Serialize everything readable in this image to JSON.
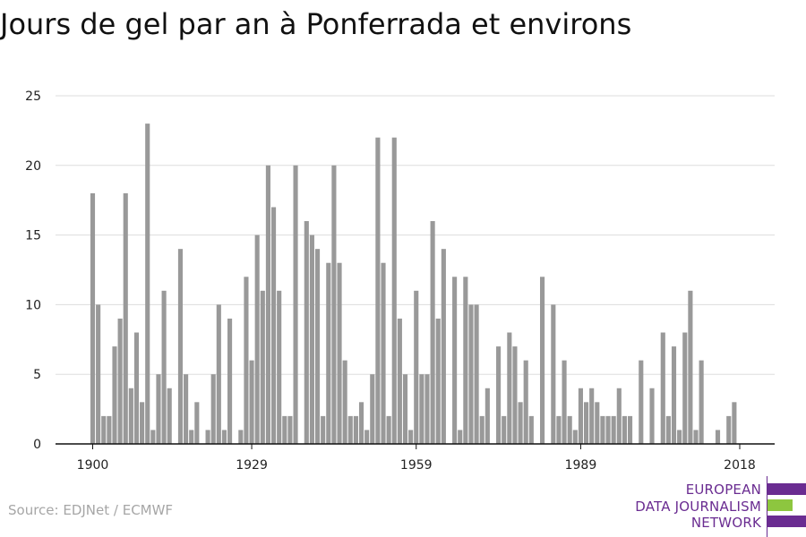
{
  "page": {
    "title": "Jours de gel par an à Ponferrada et environs",
    "source": "Source: EDJNet / ECMWF"
  },
  "logo": {
    "lines": [
      "EUROPEAN",
      "DATA JOURNALISM",
      "NETWORK"
    ],
    "colors": {
      "purple": "#6a2c91",
      "green": "#8dc63f"
    }
  },
  "chart_data": {
    "type": "bar",
    "title": "Jours de gel par an à Ponferrada et environs",
    "xlabel": "",
    "ylabel": "",
    "x_tick_labels": [
      "1900",
      "1929",
      "1959",
      "1989",
      "2018"
    ],
    "y_ticks": [
      0,
      5,
      10,
      15,
      20,
      25
    ],
    "ylim": [
      0,
      25
    ],
    "xlim": [
      1900,
      2018
    ],
    "grid": true,
    "bar_color": "#999999",
    "years": [
      1900,
      1901,
      1902,
      1903,
      1904,
      1905,
      1906,
      1907,
      1908,
      1909,
      1910,
      1911,
      1912,
      1913,
      1914,
      1915,
      1916,
      1917,
      1918,
      1919,
      1920,
      1921,
      1922,
      1923,
      1924,
      1925,
      1926,
      1927,
      1928,
      1929,
      1930,
      1931,
      1932,
      1933,
      1934,
      1935,
      1936,
      1937,
      1938,
      1939,
      1940,
      1941,
      1942,
      1943,
      1944,
      1945,
      1946,
      1947,
      1948,
      1949,
      1950,
      1951,
      1952,
      1953,
      1954,
      1955,
      1956,
      1957,
      1958,
      1959,
      1960,
      1961,
      1962,
      1963,
      1964,
      1965,
      1966,
      1967,
      1968,
      1969,
      1970,
      1971,
      1972,
      1973,
      1974,
      1975,
      1976,
      1977,
      1978,
      1979,
      1980,
      1981,
      1982,
      1983,
      1984,
      1985,
      1986,
      1987,
      1988,
      1989,
      1990,
      1991,
      1992,
      1993,
      1994,
      1995,
      1996,
      1997,
      1998,
      1999,
      2000,
      2001,
      2002,
      2003,
      2004,
      2005,
      2006,
      2007,
      2008,
      2009,
      2010,
      2011,
      2012,
      2013,
      2014,
      2015,
      2016,
      2017,
      2018
    ],
    "values": [
      18,
      10,
      2,
      2,
      7,
      9,
      18,
      4,
      8,
      3,
      23,
      1,
      5,
      11,
      4,
      0,
      14,
      5,
      1,
      3,
      0,
      1,
      5,
      10,
      1,
      9,
      0,
      1,
      12,
      6,
      15,
      11,
      20,
      17,
      11,
      2,
      2,
      20,
      0,
      16,
      15,
      14,
      2,
      13,
      20,
      13,
      6,
      2,
      2,
      3,
      1,
      5,
      22,
      13,
      2,
      22,
      9,
      5,
      1,
      11,
      5,
      5,
      16,
      9,
      14,
      0,
      12,
      1,
      12,
      10,
      10,
      2,
      4,
      0,
      7,
      2,
      8,
      7,
      3,
      6,
      2,
      0,
      12,
      0,
      10,
      2,
      6,
      2,
      1,
      4,
      3,
      4,
      3,
      2,
      2,
      2,
      4,
      2,
      2,
      0,
      6,
      0,
      4,
      0,
      8,
      2,
      7,
      1,
      8,
      11,
      1,
      6,
      0,
      0,
      1,
      0,
      2,
      3,
      0
    ]
  }
}
